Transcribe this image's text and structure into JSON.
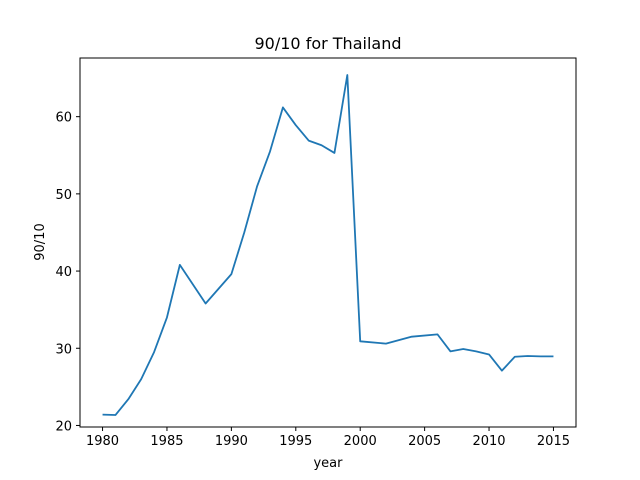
{
  "chart_data": {
    "type": "line",
    "title": "90/10 for Thailand",
    "xlabel": "year",
    "ylabel": "90/10",
    "xlim": [
      1978.25,
      2016.75
    ],
    "ylim": [
      19.8,
      67.6
    ],
    "xticks": [
      1980,
      1985,
      1990,
      1995,
      2000,
      2005,
      2010,
      2015
    ],
    "yticks": [
      20,
      30,
      40,
      50,
      60
    ],
    "grid": false,
    "series": [
      {
        "color": "#1f77b4",
        "x": [
          1980,
          1981,
          1982,
          1983,
          1984,
          1985,
          1986,
          1988,
          1990,
          1991,
          1992,
          1993,
          1994,
          1995,
          1996,
          1997,
          1998,
          1999,
          2000,
          2002,
          2004,
          2006,
          2007,
          2008,
          2009,
          2010,
          2011,
          2012,
          2013,
          2014,
          2015
        ],
        "y": [
          21.4,
          21.35,
          23.4,
          26.0,
          29.5,
          34.0,
          40.8,
          35.8,
          39.6,
          45.0,
          51.0,
          55.5,
          61.2,
          58.9,
          56.9,
          56.3,
          55.3,
          65.4,
          30.9,
          30.6,
          31.5,
          31.8,
          29.6,
          29.9,
          29.6,
          29.2,
          27.1,
          28.9,
          29.0,
          28.95,
          28.95
        ]
      }
    ]
  }
}
